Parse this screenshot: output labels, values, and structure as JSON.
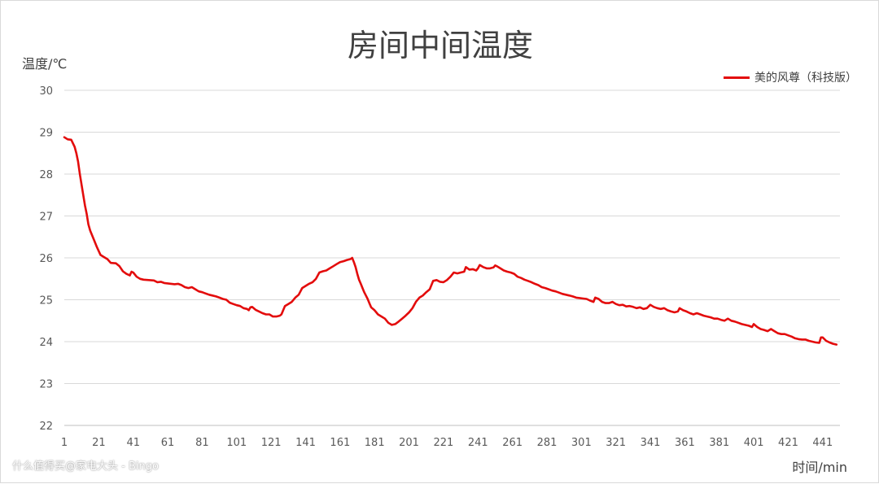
{
  "chart_data": {
    "type": "line",
    "title": "房间中间温度",
    "ylabel": "温度/℃",
    "xlabel": "时间/min",
    "ylim": [
      22,
      30
    ],
    "xlim": [
      1,
      451
    ],
    "y_ticks": [
      22,
      23,
      24,
      25,
      26,
      27,
      28,
      29,
      30
    ],
    "x_ticks": [
      1,
      21,
      41,
      61,
      81,
      101,
      121,
      141,
      161,
      181,
      201,
      221,
      241,
      261,
      281,
      301,
      321,
      341,
      361,
      381,
      401,
      421,
      441
    ],
    "grid": "horizontal",
    "legend_position": "top-right",
    "series": [
      {
        "name": "美的风尊（科技版）",
        "color": "#e30c0c",
        "points": [
          [
            1,
            28.88
          ],
          [
            3,
            28.83
          ],
          [
            5,
            28.82
          ],
          [
            7,
            28.65
          ],
          [
            8,
            28.5
          ],
          [
            9,
            28.3
          ],
          [
            10,
            28.0
          ],
          [
            11,
            27.75
          ],
          [
            12,
            27.5
          ],
          [
            13,
            27.25
          ],
          [
            14,
            27.05
          ],
          [
            15,
            26.8
          ],
          [
            16,
            26.65
          ],
          [
            18,
            26.45
          ],
          [
            20,
            26.25
          ],
          [
            22,
            26.07
          ],
          [
            24,
            26.02
          ],
          [
            26,
            25.97
          ],
          [
            28,
            25.88
          ],
          [
            31,
            25.87
          ],
          [
            33,
            25.8
          ],
          [
            35,
            25.68
          ],
          [
            37,
            25.62
          ],
          [
            39,
            25.58
          ],
          [
            40,
            25.67
          ],
          [
            41,
            25.65
          ],
          [
            43,
            25.55
          ],
          [
            45,
            25.5
          ],
          [
            47,
            25.48
          ],
          [
            50,
            25.47
          ],
          [
            53,
            25.46
          ],
          [
            55,
            25.42
          ],
          [
            57,
            25.43
          ],
          [
            59,
            25.4
          ],
          [
            61,
            25.39
          ],
          [
            63,
            25.38
          ],
          [
            65,
            25.37
          ],
          [
            67,
            25.38
          ],
          [
            69,
            25.35
          ],
          [
            71,
            25.3
          ],
          [
            73,
            25.28
          ],
          [
            75,
            25.3
          ],
          [
            77,
            25.25
          ],
          [
            79,
            25.2
          ],
          [
            81,
            25.18
          ],
          [
            83,
            25.15
          ],
          [
            85,
            25.12
          ],
          [
            87,
            25.1
          ],
          [
            89,
            25.08
          ],
          [
            91,
            25.05
          ],
          [
            93,
            25.02
          ],
          [
            95,
            25.0
          ],
          [
            97,
            24.93
          ],
          [
            99,
            24.9
          ],
          [
            101,
            24.87
          ],
          [
            103,
            24.85
          ],
          [
            105,
            24.8
          ],
          [
            107,
            24.78
          ],
          [
            108,
            24.75
          ],
          [
            109,
            24.82
          ],
          [
            110,
            24.83
          ],
          [
            112,
            24.76
          ],
          [
            114,
            24.72
          ],
          [
            116,
            24.68
          ],
          [
            118,
            24.65
          ],
          [
            120,
            24.65
          ],
          [
            122,
            24.6
          ],
          [
            124,
            24.6
          ],
          [
            126,
            24.62
          ],
          [
            127,
            24.65
          ],
          [
            129,
            24.85
          ],
          [
            131,
            24.9
          ],
          [
            133,
            24.95
          ],
          [
            135,
            25.05
          ],
          [
            137,
            25.12
          ],
          [
            139,
            25.28
          ],
          [
            141,
            25.33
          ],
          [
            143,
            25.38
          ],
          [
            145,
            25.42
          ],
          [
            147,
            25.5
          ],
          [
            149,
            25.65
          ],
          [
            151,
            25.68
          ],
          [
            153,
            25.7
          ],
          [
            155,
            25.75
          ],
          [
            157,
            25.8
          ],
          [
            159,
            25.85
          ],
          [
            161,
            25.9
          ],
          [
            163,
            25.92
          ],
          [
            165,
            25.95
          ],
          [
            167,
            25.97
          ],
          [
            168,
            26.0
          ],
          [
            169,
            25.9
          ],
          [
            170,
            25.78
          ],
          [
            171,
            25.62
          ],
          [
            172,
            25.48
          ],
          [
            173,
            25.38
          ],
          [
            174,
            25.28
          ],
          [
            175,
            25.18
          ],
          [
            176,
            25.1
          ],
          [
            177,
            25.02
          ],
          [
            178,
            24.92
          ],
          [
            179,
            24.82
          ],
          [
            181,
            24.75
          ],
          [
            183,
            24.65
          ],
          [
            185,
            24.6
          ],
          [
            187,
            24.55
          ],
          [
            189,
            24.45
          ],
          [
            191,
            24.4
          ],
          [
            193,
            24.42
          ],
          [
            195,
            24.48
          ],
          [
            197,
            24.55
          ],
          [
            199,
            24.62
          ],
          [
            201,
            24.7
          ],
          [
            203,
            24.8
          ],
          [
            205,
            24.95
          ],
          [
            207,
            25.05
          ],
          [
            209,
            25.1
          ],
          [
            211,
            25.18
          ],
          [
            213,
            25.25
          ],
          [
            215,
            25.45
          ],
          [
            217,
            25.47
          ],
          [
            219,
            25.43
          ],
          [
            221,
            25.42
          ],
          [
            223,
            25.47
          ],
          [
            225,
            25.55
          ],
          [
            227,
            25.65
          ],
          [
            229,
            25.63
          ],
          [
            231,
            25.65
          ],
          [
            233,
            25.67
          ],
          [
            234,
            25.78
          ],
          [
            236,
            25.72
          ],
          [
            238,
            25.73
          ],
          [
            240,
            25.7
          ],
          [
            241,
            25.75
          ],
          [
            242,
            25.83
          ],
          [
            244,
            25.78
          ],
          [
            246,
            25.75
          ],
          [
            248,
            25.75
          ],
          [
            250,
            25.77
          ],
          [
            251,
            25.82
          ],
          [
            252,
            25.8
          ],
          [
            254,
            25.75
          ],
          [
            256,
            25.7
          ],
          [
            258,
            25.67
          ],
          [
            260,
            25.65
          ],
          [
            262,
            25.62
          ],
          [
            264,
            25.55
          ],
          [
            266,
            25.52
          ],
          [
            268,
            25.48
          ],
          [
            270,
            25.45
          ],
          [
            272,
            25.42
          ],
          [
            274,
            25.38
          ],
          [
            276,
            25.35
          ],
          [
            278,
            25.3
          ],
          [
            280,
            25.28
          ],
          [
            282,
            25.25
          ],
          [
            284,
            25.22
          ],
          [
            286,
            25.2
          ],
          [
            288,
            25.17
          ],
          [
            290,
            25.14
          ],
          [
            292,
            25.12
          ],
          [
            294,
            25.1
          ],
          [
            296,
            25.08
          ],
          [
            298,
            25.05
          ],
          [
            300,
            25.04
          ],
          [
            302,
            25.03
          ],
          [
            304,
            25.02
          ],
          [
            306,
            24.98
          ],
          [
            308,
            24.95
          ],
          [
            309,
            25.05
          ],
          [
            311,
            25.02
          ],
          [
            313,
            24.95
          ],
          [
            315,
            24.92
          ],
          [
            317,
            24.92
          ],
          [
            319,
            24.95
          ],
          [
            321,
            24.9
          ],
          [
            323,
            24.87
          ],
          [
            325,
            24.88
          ],
          [
            327,
            24.84
          ],
          [
            329,
            24.85
          ],
          [
            331,
            24.83
          ],
          [
            333,
            24.8
          ],
          [
            335,
            24.82
          ],
          [
            337,
            24.78
          ],
          [
            339,
            24.8
          ],
          [
            341,
            24.88
          ],
          [
            343,
            24.83
          ],
          [
            345,
            24.8
          ],
          [
            347,
            24.78
          ],
          [
            349,
            24.8
          ],
          [
            351,
            24.75
          ],
          [
            353,
            24.72
          ],
          [
            355,
            24.7
          ],
          [
            357,
            24.72
          ],
          [
            358,
            24.8
          ],
          [
            360,
            24.75
          ],
          [
            362,
            24.72
          ],
          [
            364,
            24.68
          ],
          [
            366,
            24.65
          ],
          [
            368,
            24.68
          ],
          [
            370,
            24.65
          ],
          [
            372,
            24.62
          ],
          [
            374,
            24.6
          ],
          [
            376,
            24.58
          ],
          [
            378,
            24.55
          ],
          [
            380,
            24.55
          ],
          [
            382,
            24.52
          ],
          [
            384,
            24.5
          ],
          [
            386,
            24.55
          ],
          [
            388,
            24.5
          ],
          [
            390,
            24.48
          ],
          [
            392,
            24.45
          ],
          [
            394,
            24.42
          ],
          [
            396,
            24.4
          ],
          [
            398,
            24.38
          ],
          [
            400,
            24.35
          ],
          [
            401,
            24.42
          ],
          [
            403,
            24.35
          ],
          [
            405,
            24.3
          ],
          [
            407,
            24.28
          ],
          [
            409,
            24.25
          ],
          [
            411,
            24.3
          ],
          [
            413,
            24.25
          ],
          [
            415,
            24.2
          ],
          [
            417,
            24.18
          ],
          [
            419,
            24.18
          ],
          [
            421,
            24.15
          ],
          [
            423,
            24.12
          ],
          [
            425,
            24.08
          ],
          [
            427,
            24.06
          ],
          [
            429,
            24.05
          ],
          [
            431,
            24.05
          ],
          [
            433,
            24.02
          ],
          [
            435,
            24.0
          ],
          [
            437,
            23.98
          ],
          [
            439,
            23.97
          ],
          [
            440,
            24.1
          ],
          [
            441,
            24.1
          ],
          [
            443,
            24.02
          ],
          [
            445,
            23.98
          ],
          [
            447,
            23.95
          ],
          [
            449,
            23.93
          ]
        ]
      }
    ]
  },
  "watermark": "什么值得买@家电大头 - Bingo"
}
